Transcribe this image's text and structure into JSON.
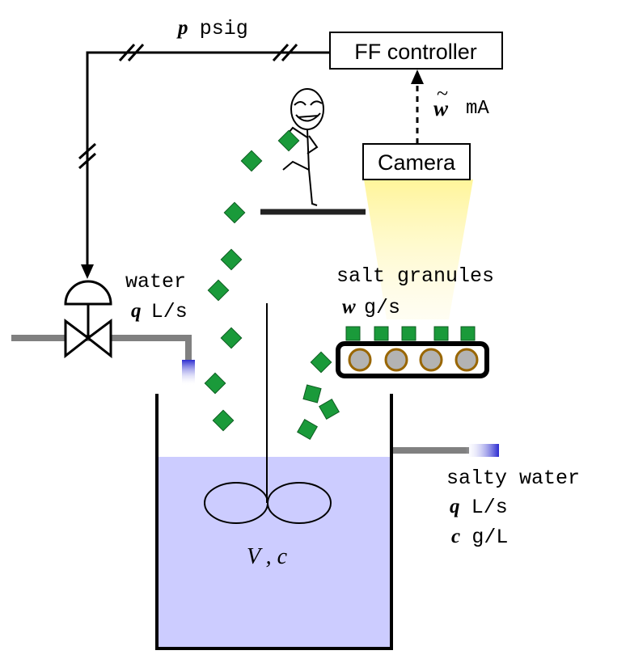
{
  "signals": {
    "pressure": {
      "var": "p",
      "unit": "psig"
    },
    "camera": {
      "var": "w",
      "tilde": "~",
      "unit": "mA"
    }
  },
  "boxes": {
    "controller": "FF controller",
    "camera": "Camera"
  },
  "streams": {
    "water_in": {
      "name": "water",
      "var": "q",
      "unit": "L/s"
    },
    "salt": {
      "name": "salt granules",
      "var": "w",
      "unit": "g/s"
    },
    "outlet": {
      "name": "salty water",
      "flow_var": "q",
      "flow_unit": "L/s",
      "conc_var": "c",
      "conc_unit": "g/L"
    }
  },
  "tank": {
    "volume_var": "V",
    "separator": ",",
    "conc_var": "c"
  },
  "colors": {
    "line": "#000000",
    "pipe": "#808080",
    "liquid": "#ccccff",
    "granule": "#1a9a3a",
    "roller_fill": "#b3b3b3",
    "roller_ring": "#996600",
    "light_beam": "#fff7a0",
    "spout": "#3333cc"
  }
}
